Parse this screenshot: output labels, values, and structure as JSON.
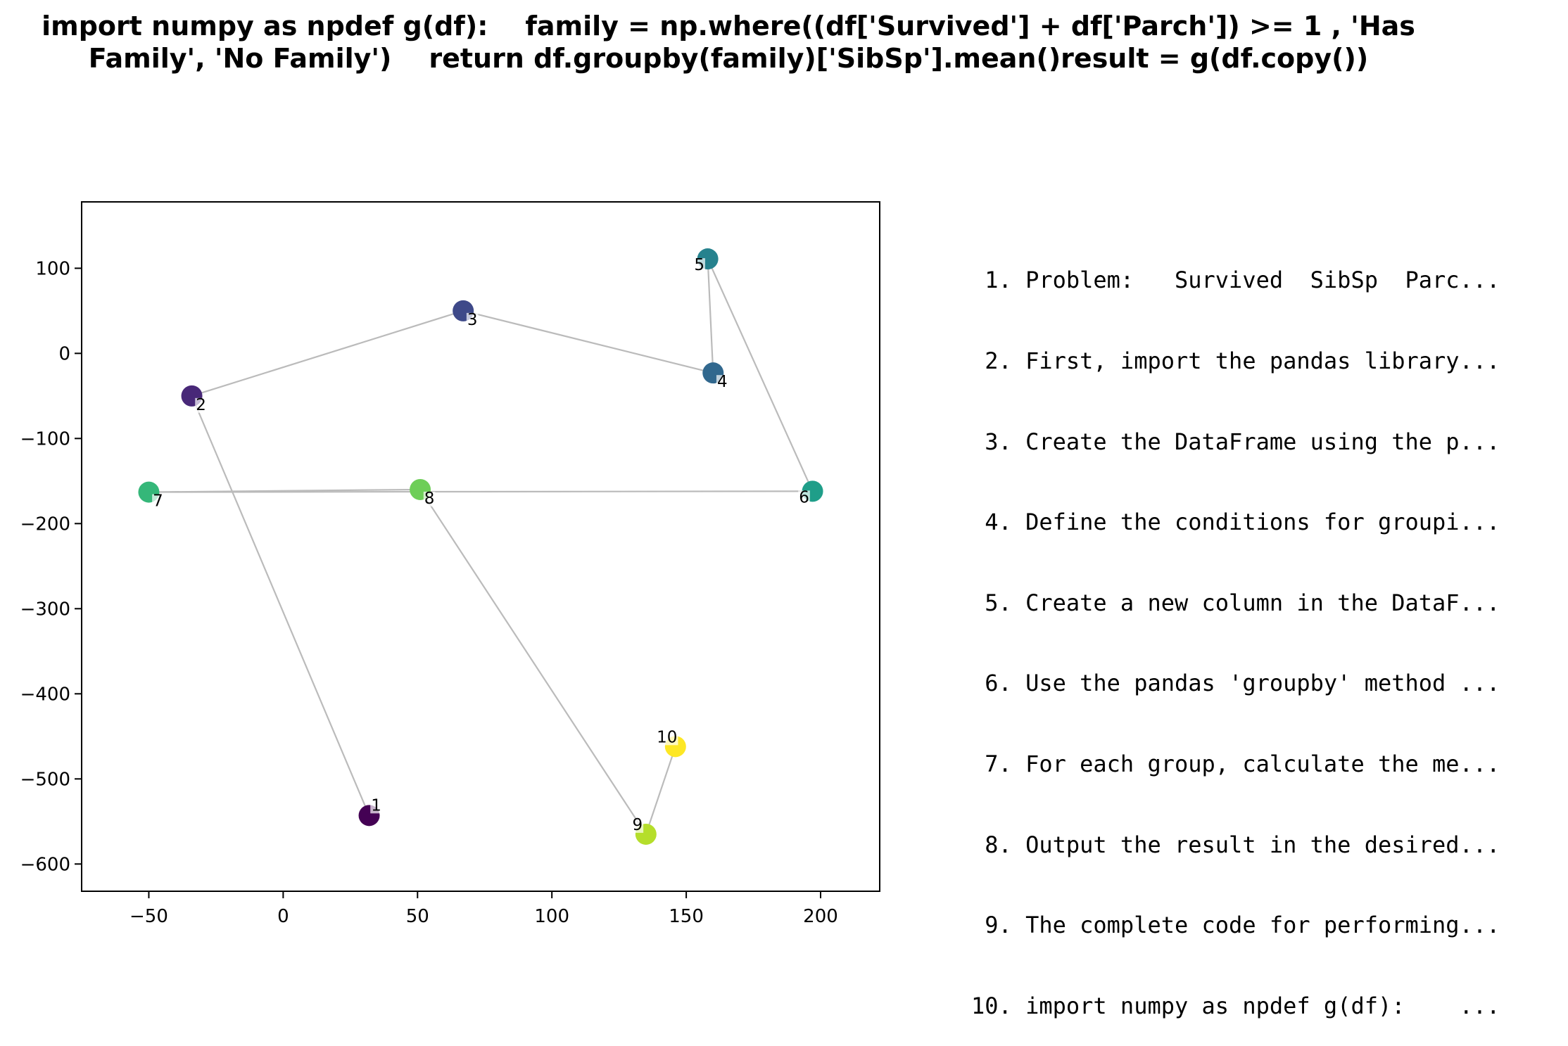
{
  "title_lines": [
    "import numpy as npdef g(df):    family = np.where((df['Survived'] + df['Parch']) >= 1 , 'Has",
    "Family', 'No Family')    return df.groupby(family)['SibSp'].mean()result = g(df.copy())"
  ],
  "steps": [
    " 1. Problem:   Survived  SibSp  Parc...",
    " 2. First, import the pandas library...",
    " 3. Create the DataFrame using the p...",
    " 4. Define the conditions for groupi...",
    " 5. Create a new column in the DataF...",
    " 6. Use the pandas 'groupby' method ...",
    " 7. For each group, calculate the me...",
    " 8. Output the result in the desired...",
    " 9. The complete code for performing...",
    "10. import numpy as npdef g(df):    ..."
  ],
  "chart_data": {
    "type": "scatter",
    "title": "",
    "xlabel": "",
    "ylabel": "",
    "xlim": [
      -75,
      222
    ],
    "ylim": [
      -632,
      178
    ],
    "xticks": [
      -50,
      0,
      50,
      100,
      150,
      200
    ],
    "yticks": [
      100,
      0,
      -100,
      -200,
      -300,
      -400,
      -500,
      -600
    ],
    "grid": false,
    "colormap": "viridis",
    "connect_in_order": true,
    "line_color": "#bbbbbb",
    "points": [
      {
        "label": "1",
        "x": 32,
        "y": -543,
        "color": "#440154"
      },
      {
        "label": "2",
        "x": -34,
        "y": -50,
        "color": "#482878"
      },
      {
        "label": "3",
        "x": 67,
        "y": 50,
        "color": "#3e4989"
      },
      {
        "label": "4",
        "x": 160,
        "y": -23,
        "color": "#31688e"
      },
      {
        "label": "5",
        "x": 158,
        "y": 111,
        "color": "#26828e"
      },
      {
        "label": "6",
        "x": 197,
        "y": -162,
        "color": "#1f9e89"
      },
      {
        "label": "7",
        "x": -50,
        "y": -163,
        "color": "#35b779"
      },
      {
        "label": "8",
        "x": 51,
        "y": -160,
        "color": "#6ece58"
      },
      {
        "label": "9",
        "x": 135,
        "y": -565,
        "color": "#b5de2b"
      },
      {
        "label": "10",
        "x": 146,
        "y": -462,
        "color": "#fde725"
      }
    ]
  }
}
